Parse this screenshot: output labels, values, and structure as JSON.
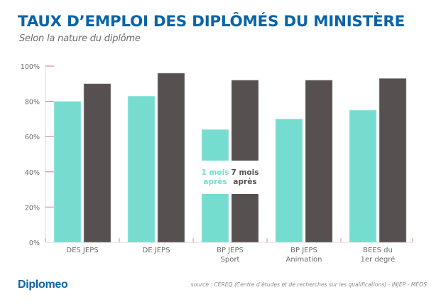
{
  "header": {
    "title": "TAUX D’EMPLOI DES DIPLÔMÉS DU MINISTÈRE",
    "subtitle": "Selon la nature du diplôme"
  },
  "footer": {
    "brand": "Diplomeo",
    "source": "source : CÉREQ (Centre d’études et de recherches sur les qualifications) - INJEP - MÉOS"
  },
  "colors": {
    "series1": "#76dcd0",
    "series2": "#565150",
    "axis_tick": "#d98ca0",
    "axis_line": "#e6d6db",
    "text": "#6b6b6b"
  },
  "chart_data": {
    "type": "bar",
    "title": "TAUX D’EMPLOI DES DIPLÔMÉS DU MINISTÈRE",
    "subtitle": "Selon la nature du diplôme",
    "xlabel": "",
    "ylabel": "",
    "ylim": [
      0,
      100
    ],
    "yticks": [
      "0%",
      "20%",
      "40%",
      "60%",
      "80%",
      "100%"
    ],
    "ytick_values": [
      0,
      20,
      40,
      60,
      80,
      100
    ],
    "grid": false,
    "categories": [
      [
        "DES JEPS"
      ],
      [
        "DE JEPS"
      ],
      [
        "BP JEPS",
        "Sport"
      ],
      [
        "BP JEPS",
        "Animation"
      ],
      [
        "BEES du",
        "1er degré"
      ]
    ],
    "series": [
      {
        "name": "1 mois après",
        "legend_lines": [
          "1 mois",
          "après"
        ],
        "values": [
          80,
          83,
          64,
          70,
          75
        ]
      },
      {
        "name": "7 mois après",
        "legend_lines": [
          "7 mois",
          "après"
        ],
        "values": [
          90,
          96,
          92,
          92,
          93
        ]
      }
    ],
    "legend_placement": "inside-center (over BP JEPS Sport bars)"
  }
}
